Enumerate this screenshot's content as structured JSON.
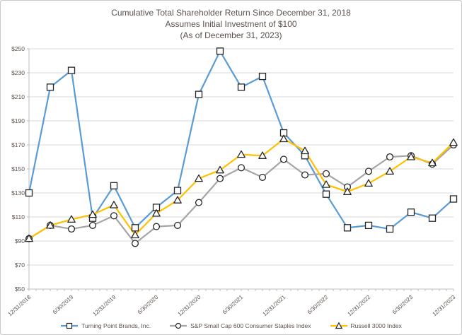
{
  "window": {
    "background": "#ffffff",
    "border_color": "#c9c9c9"
  },
  "chart_data": {
    "type": "line",
    "title_lines": [
      "Cumulative Total Shareholder Return Since December 31, 2018",
      "Assumes Initial Investment of $100",
      "(As of December 31, 2023)"
    ],
    "x_tick_labels": [
      "12/31/2018",
      "6/30/2019",
      "12/31/2019",
      "6/30/2020",
      "12/31/2020",
      "6/30/2021",
      "12/31/2021",
      "6/30/2022",
      "12/31/2022",
      "6/30/2023",
      "12/31/2023"
    ],
    "points_per_labeled_tick": 2,
    "n_points": 21,
    "point_frequency": "quarterly",
    "ylim": [
      50,
      250
    ],
    "y_ticks": [
      50,
      70,
      90,
      110,
      130,
      150,
      170,
      190,
      210,
      230,
      250
    ],
    "y_tick_prefix": "$",
    "grid": "horizontal",
    "legend_position": "bottom",
    "colors": {
      "grid": "#d9d9d9",
      "axis": "#bfbfbf",
      "text": "#5a524c",
      "marker_outline": "#262626",
      "marker_fill": "#ffffff"
    },
    "series": [
      {
        "name": "Turning Point Brands, Inc.",
        "color": "#5B9BD5",
        "marker": "square",
        "values": [
          130,
          218,
          232,
          109,
          136,
          101,
          118,
          132,
          212,
          248,
          218,
          227,
          180,
          161,
          129,
          101,
          103,
          100,
          114,
          109,
          125
        ]
      },
      {
        "name": "S&P Small Cap 600 Consumer Staples Index",
        "color": "#A5A5A5",
        "marker": "circle",
        "values": [
          92,
          103,
          100,
          103,
          111,
          88,
          102,
          103,
          122,
          142,
          151,
          143,
          158,
          145,
          146,
          135,
          148,
          160,
          161,
          154,
          170
        ]
      },
      {
        "name": "Russell 3000 Index",
        "color": "#FFC000",
        "marker": "triangle",
        "values": [
          92,
          103,
          108,
          112,
          120,
          95,
          113,
          124,
          142,
          149,
          162,
          161,
          175,
          165,
          137,
          131,
          138,
          148,
          160,
          155,
          172
        ]
      }
    ]
  }
}
